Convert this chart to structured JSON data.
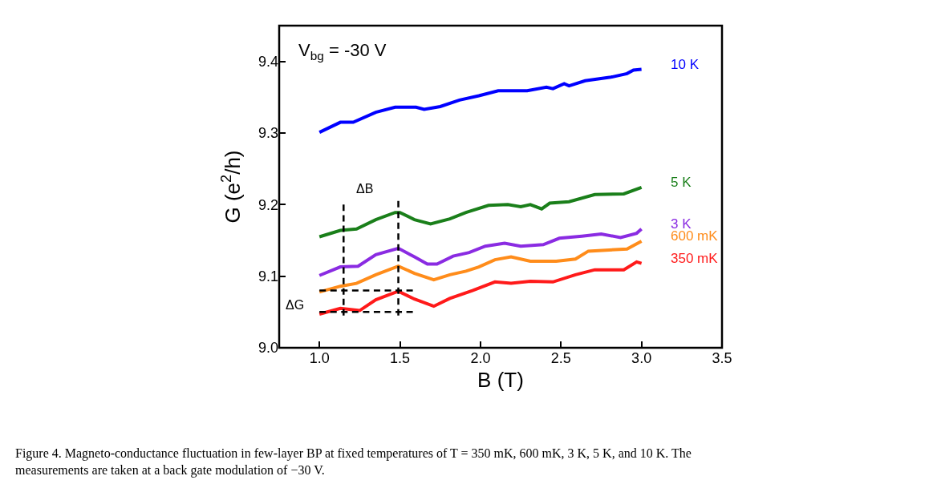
{
  "chart_data": {
    "type": "line",
    "xlabel": "B (T)",
    "ylabel": "G (e$^{2}$/h)",
    "xlim": [
      0.75,
      3.5
    ],
    "xticks": [
      {
        "value": 1.0,
        "label": "1.0"
      },
      {
        "value": 1.5,
        "label": "1.5"
      },
      {
        "value": 2.0,
        "label": "2.0"
      },
      {
        "value": 2.5,
        "label": "2.5"
      },
      {
        "value": 3.0,
        "label": "3.0"
      },
      {
        "value": 3.5,
        "label": "3.5"
      }
    ],
    "ylim": [
      9.0,
      9.45
    ],
    "yticks": [
      {
        "value": 9.0,
        "label": "9.0"
      },
      {
        "value": 9.1,
        "label": "9.1"
      },
      {
        "value": 9.2,
        "label": "9.2"
      },
      {
        "value": 9.3,
        "label": "9.3"
      },
      {
        "value": 9.4,
        "label": "9.4"
      }
    ],
    "legend": false,
    "marker": "none",
    "line_style": "solid",
    "series": [
      {
        "name": "10 K",
        "color": "#0000ff",
        "x": [
          1.0,
          1.13,
          1.21,
          1.35,
          1.47,
          1.6,
          1.65,
          1.75,
          1.87,
          1.99,
          2.11,
          2.29,
          2.41,
          2.45,
          2.52,
          2.55,
          2.65,
          2.81,
          2.91,
          2.95,
          3.0
        ],
        "values": [
          9.301,
          9.315,
          9.315,
          9.329,
          9.336,
          9.336,
          9.333,
          9.337,
          9.346,
          9.352,
          9.359,
          9.359,
          9.364,
          9.362,
          9.369,
          9.366,
          9.373,
          9.378,
          9.383,
          9.388,
          9.389
        ]
      },
      {
        "name": "5 K",
        "color": "#1a7f1a",
        "x": [
          1.0,
          1.13,
          1.23,
          1.35,
          1.47,
          1.5,
          1.59,
          1.69,
          1.81,
          1.91,
          2.05,
          2.17,
          2.25,
          2.31,
          2.38,
          2.43,
          2.55,
          2.71,
          2.89,
          3.0
        ],
        "values": [
          9.155,
          9.164,
          9.166,
          9.179,
          9.189,
          9.189,
          9.179,
          9.173,
          9.18,
          9.189,
          9.199,
          9.2,
          9.197,
          9.2,
          9.194,
          9.202,
          9.204,
          9.214,
          9.215,
          9.224
        ]
      },
      {
        "name": "3 K",
        "color": "#8a2be2",
        "x": [
          1.0,
          1.13,
          1.24,
          1.35,
          1.49,
          1.59,
          1.67,
          1.73,
          1.83,
          1.93,
          2.03,
          2.15,
          2.25,
          2.39,
          2.49,
          2.63,
          2.75,
          2.87,
          2.97,
          3.0
        ],
        "values": [
          9.101,
          9.113,
          9.114,
          9.13,
          9.139,
          9.127,
          9.117,
          9.117,
          9.128,
          9.133,
          9.142,
          9.146,
          9.142,
          9.144,
          9.153,
          9.156,
          9.159,
          9.154,
          9.16,
          9.166
        ]
      },
      {
        "name": "600 mK",
        "color": "#ff8c1a",
        "x": [
          1.0,
          1.13,
          1.23,
          1.35,
          1.49,
          1.59,
          1.71,
          1.81,
          1.91,
          1.99,
          2.09,
          2.19,
          2.31,
          2.47,
          2.59,
          2.67,
          2.91,
          3.0
        ],
        "values": [
          9.078,
          9.086,
          9.09,
          9.102,
          9.114,
          9.104,
          9.095,
          9.102,
          9.107,
          9.113,
          9.123,
          9.127,
          9.121,
          9.121,
          9.124,
          9.135,
          9.138,
          9.149
        ]
      },
      {
        "name": "350 mK",
        "color": "#ff1a1a",
        "x": [
          1.0,
          1.13,
          1.25,
          1.35,
          1.49,
          1.59,
          1.71,
          1.81,
          1.95,
          2.09,
          2.19,
          2.31,
          2.45,
          2.59,
          2.71,
          2.89,
          2.97,
          3.0
        ],
        "values": [
          9.047,
          9.055,
          9.052,
          9.067,
          9.079,
          9.068,
          9.058,
          9.069,
          9.08,
          9.092,
          9.09,
          9.093,
          9.092,
          9.102,
          9.109,
          9.109,
          9.12,
          9.118
        ]
      },
      {
        "color": "#000000",
        "line_style": "dashed",
        "x": [
          1.15,
          1.15
        ],
        "values": [
          9.045,
          9.2
        ]
      },
      {
        "color": "#000000",
        "line_style": "dashed",
        "x": [
          1.49,
          1.49
        ],
        "values": [
          9.045,
          9.205
        ]
      },
      {
        "color": "#000000",
        "line_style": "dashed",
        "x": [
          1.0,
          1.58
        ],
        "values": [
          9.08,
          9.08
        ]
      },
      {
        "color": "#000000",
        "line_style": "dashed",
        "x": [
          1.0,
          1.58
        ],
        "values": [
          9.05,
          9.05
        ]
      }
    ],
    "annotations": [
      "V$_{bg}$ = -30 V",
      "ΔB",
      "ΔG",
      "Figure 4. Magneto-conductance fluctuation in few-layer BP at fixed temperatures of T = 350 mK, 600 mK, 3 K, 5 K, and 10 K. The\nmeasurements are taken at a back gate modulation of −30 V."
    ]
  }
}
